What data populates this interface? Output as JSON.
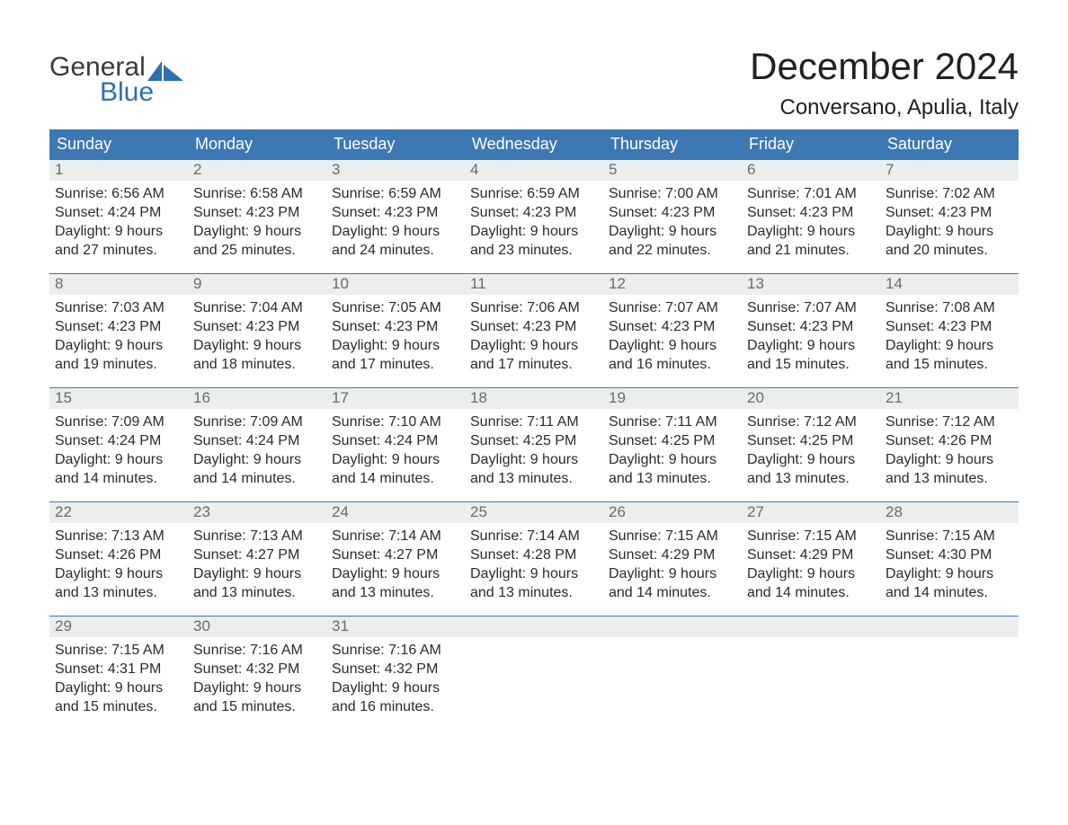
{
  "brand": {
    "text_top": "General",
    "text_bottom": "Blue",
    "accent_color": "#2f6faf"
  },
  "title": "December 2024",
  "location": "Conversano, Apulia, Italy",
  "header_bg": "#3c78b4",
  "daynum_bg": "#eceded",
  "week_border": "#3c78b4",
  "days_of_week": [
    "Sunday",
    "Monday",
    "Tuesday",
    "Wednesday",
    "Thursday",
    "Friday",
    "Saturday"
  ],
  "labels": {
    "sunrise": "Sunrise:",
    "sunset": "Sunset:",
    "daylight": "Daylight:"
  },
  "days": [
    {
      "n": 1,
      "sunrise": "6:56 AM",
      "sunset": "4:24 PM",
      "daylight": "9 hours and 27 minutes."
    },
    {
      "n": 2,
      "sunrise": "6:58 AM",
      "sunset": "4:23 PM",
      "daylight": "9 hours and 25 minutes."
    },
    {
      "n": 3,
      "sunrise": "6:59 AM",
      "sunset": "4:23 PM",
      "daylight": "9 hours and 24 minutes."
    },
    {
      "n": 4,
      "sunrise": "6:59 AM",
      "sunset": "4:23 PM",
      "daylight": "9 hours and 23 minutes."
    },
    {
      "n": 5,
      "sunrise": "7:00 AM",
      "sunset": "4:23 PM",
      "daylight": "9 hours and 22 minutes."
    },
    {
      "n": 6,
      "sunrise": "7:01 AM",
      "sunset": "4:23 PM",
      "daylight": "9 hours and 21 minutes."
    },
    {
      "n": 7,
      "sunrise": "7:02 AM",
      "sunset": "4:23 PM",
      "daylight": "9 hours and 20 minutes."
    },
    {
      "n": 8,
      "sunrise": "7:03 AM",
      "sunset": "4:23 PM",
      "daylight": "9 hours and 19 minutes."
    },
    {
      "n": 9,
      "sunrise": "7:04 AM",
      "sunset": "4:23 PM",
      "daylight": "9 hours and 18 minutes."
    },
    {
      "n": 10,
      "sunrise": "7:05 AM",
      "sunset": "4:23 PM",
      "daylight": "9 hours and 17 minutes."
    },
    {
      "n": 11,
      "sunrise": "7:06 AM",
      "sunset": "4:23 PM",
      "daylight": "9 hours and 17 minutes."
    },
    {
      "n": 12,
      "sunrise": "7:07 AM",
      "sunset": "4:23 PM",
      "daylight": "9 hours and 16 minutes."
    },
    {
      "n": 13,
      "sunrise": "7:07 AM",
      "sunset": "4:23 PM",
      "daylight": "9 hours and 15 minutes."
    },
    {
      "n": 14,
      "sunrise": "7:08 AM",
      "sunset": "4:23 PM",
      "daylight": "9 hours and 15 minutes."
    },
    {
      "n": 15,
      "sunrise": "7:09 AM",
      "sunset": "4:24 PM",
      "daylight": "9 hours and 14 minutes."
    },
    {
      "n": 16,
      "sunrise": "7:09 AM",
      "sunset": "4:24 PM",
      "daylight": "9 hours and 14 minutes."
    },
    {
      "n": 17,
      "sunrise": "7:10 AM",
      "sunset": "4:24 PM",
      "daylight": "9 hours and 14 minutes."
    },
    {
      "n": 18,
      "sunrise": "7:11 AM",
      "sunset": "4:25 PM",
      "daylight": "9 hours and 13 minutes."
    },
    {
      "n": 19,
      "sunrise": "7:11 AM",
      "sunset": "4:25 PM",
      "daylight": "9 hours and 13 minutes."
    },
    {
      "n": 20,
      "sunrise": "7:12 AM",
      "sunset": "4:25 PM",
      "daylight": "9 hours and 13 minutes."
    },
    {
      "n": 21,
      "sunrise": "7:12 AM",
      "sunset": "4:26 PM",
      "daylight": "9 hours and 13 minutes."
    },
    {
      "n": 22,
      "sunrise": "7:13 AM",
      "sunset": "4:26 PM",
      "daylight": "9 hours and 13 minutes."
    },
    {
      "n": 23,
      "sunrise": "7:13 AM",
      "sunset": "4:27 PM",
      "daylight": "9 hours and 13 minutes."
    },
    {
      "n": 24,
      "sunrise": "7:14 AM",
      "sunset": "4:27 PM",
      "daylight": "9 hours and 13 minutes."
    },
    {
      "n": 25,
      "sunrise": "7:14 AM",
      "sunset": "4:28 PM",
      "daylight": "9 hours and 13 minutes."
    },
    {
      "n": 26,
      "sunrise": "7:15 AM",
      "sunset": "4:29 PM",
      "daylight": "9 hours and 14 minutes."
    },
    {
      "n": 27,
      "sunrise": "7:15 AM",
      "sunset": "4:29 PM",
      "daylight": "9 hours and 14 minutes."
    },
    {
      "n": 28,
      "sunrise": "7:15 AM",
      "sunset": "4:30 PM",
      "daylight": "9 hours and 14 minutes."
    },
    {
      "n": 29,
      "sunrise": "7:15 AM",
      "sunset": "4:31 PM",
      "daylight": "9 hours and 15 minutes."
    },
    {
      "n": 30,
      "sunrise": "7:16 AM",
      "sunset": "4:32 PM",
      "daylight": "9 hours and 15 minutes."
    },
    {
      "n": 31,
      "sunrise": "7:16 AM",
      "sunset": "4:32 PM",
      "daylight": "9 hours and 16 minutes."
    }
  ],
  "grid": {
    "start_offset": 0,
    "total_cells": 35
  }
}
